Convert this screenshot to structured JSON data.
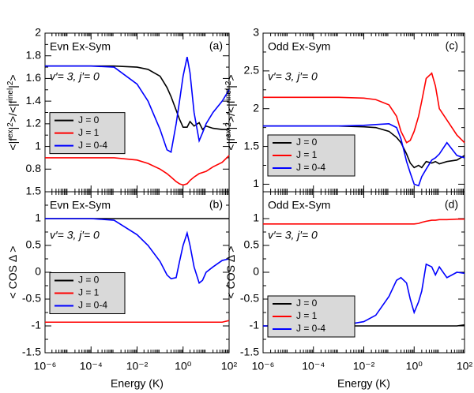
{
  "chart_data": [
    {
      "type": "line",
      "label": "(a)",
      "title": "Evn Ex-Sym",
      "annotation": "v′= 3, j′= 0",
      "ylabel": [
        "<|f",
        "ex",
        "|",
        "2",
        ">/<|f",
        "inel",
        "|",
        "2",
        ">"
      ],
      "xscale": "log",
      "xlim": [
        1e-06,
        100
      ],
      "xticks": [
        1e-06,
        0.0001,
        0.01,
        1,
        100
      ],
      "ylim": [
        0.6,
        2
      ],
      "yticks": [
        0.8,
        1,
        1.2,
        1.4,
        1.6,
        1.8,
        2
      ],
      "legend": "center left",
      "x": [
        1e-06,
        1e-05,
        0.0001,
        0.001,
        0.01,
        0.03,
        0.1,
        0.2,
        0.3,
        0.5,
        0.7,
        1,
        1.5,
        2,
        3,
        5,
        7,
        10,
        20,
        50,
        100
      ],
      "series": [
        {
          "name": "J = 0",
          "color": "#000000",
          "values": [
            1.71,
            1.71,
            1.71,
            1.71,
            1.7,
            1.68,
            1.62,
            1.52,
            1.44,
            1.32,
            1.24,
            1.17,
            1.17,
            1.22,
            1.18,
            1.21,
            1.15,
            1.18,
            1.16,
            1.15,
            1.15
          ]
        },
        {
          "name": "J = 1",
          "color": "#ff0000",
          "values": [
            0.9,
            0.9,
            0.9,
            0.9,
            0.88,
            0.85,
            0.8,
            0.76,
            0.73,
            0.69,
            0.67,
            0.66,
            0.67,
            0.7,
            0.73,
            0.76,
            0.77,
            0.78,
            0.82,
            0.86,
            0.92
          ]
        },
        {
          "name": "J = 0-4",
          "color": "#0000ff",
          "values": [
            1.71,
            1.71,
            1.71,
            1.7,
            1.55,
            1.4,
            1.15,
            0.97,
            0.95,
            1.2,
            1.4,
            1.62,
            1.79,
            1.65,
            1.3,
            1.05,
            1.12,
            1.2,
            1.3,
            1.4,
            1.5
          ]
        }
      ]
    },
    {
      "type": "line",
      "label": "(b)",
      "title": "Evn Ex-Sym",
      "annotation": "v′= 3, j′= 0",
      "ylabel": [
        "< COS Δ >"
      ],
      "xlabel": "Energy (K)",
      "xscale": "log",
      "xlim": [
        1e-06,
        100
      ],
      "xticks": [
        {
          "value": 1e-06,
          "label": "10⁻⁶"
        },
        {
          "value": 0.0001,
          "label": "10⁻⁴"
        },
        {
          "value": 0.01,
          "label": "10⁻²"
        },
        {
          "value": 1,
          "label": "10⁰"
        },
        {
          "value": 100,
          "label": "10²"
        }
      ],
      "ylim": [
        -1.5,
        1.5
      ],
      "yticks": [
        -1.5,
        -1,
        -0.5,
        0,
        0.5,
        1,
        1.5
      ],
      "legend": "center left",
      "x": [
        1e-06,
        1e-05,
        0.0001,
        0.001,
        0.01,
        0.03,
        0.1,
        0.2,
        0.3,
        0.5,
        0.7,
        1,
        1.5,
        2,
        3,
        5,
        7,
        10,
        20,
        50,
        100
      ],
      "series": [
        {
          "name": "J = 0",
          "color": "#000000",
          "values": [
            1,
            1,
            1,
            1,
            1,
            1,
            1,
            1,
            1,
            1,
            1,
            1,
            1,
            1,
            1,
            1,
            1,
            1,
            1,
            1,
            1
          ]
        },
        {
          "name": "J = 1",
          "color": "#ff0000",
          "values": [
            -0.93,
            -0.93,
            -0.93,
            -0.93,
            -0.93,
            -0.93,
            -0.93,
            -0.93,
            -0.93,
            -0.93,
            -0.93,
            -0.93,
            -0.93,
            -0.93,
            -0.93,
            -0.93,
            -0.93,
            -0.93,
            -0.93,
            -0.93,
            -0.9
          ]
        },
        {
          "name": "J = 0-4",
          "color": "#0000ff",
          "values": [
            1,
            1,
            1,
            0.97,
            0.7,
            0.5,
            0.2,
            -0.05,
            -0.12,
            -0.1,
            0.2,
            0.5,
            0.73,
            0.5,
            0.1,
            -0.2,
            -0.15,
            0,
            0.1,
            0.22,
            0.25
          ]
        }
      ]
    },
    {
      "type": "line",
      "label": "(c)",
      "title": "Odd Ex-Sym",
      "annotation": "v′= 3, j′= 0",
      "ylabel": [
        "<|f",
        "ex",
        "|",
        "2",
        ">/<|f",
        "inel",
        "|",
        "2",
        ">"
      ],
      "xscale": "log",
      "xlim": [
        1e-06,
        100
      ],
      "xticks": [
        1e-06,
        0.0001,
        0.01,
        1,
        100
      ],
      "ylim": [
        0.9,
        3
      ],
      "yticks": [
        1,
        1.5,
        2,
        2.5,
        3
      ],
      "legend": "lower left",
      "x": [
        1e-06,
        1e-05,
        0.0001,
        0.001,
        0.01,
        0.03,
        0.1,
        0.2,
        0.3,
        0.5,
        0.7,
        1,
        1.5,
        2,
        3,
        5,
        7,
        10,
        20,
        50,
        100
      ],
      "series": [
        {
          "name": "J = 0",
          "color": "#000000",
          "values": [
            1.77,
            1.77,
            1.77,
            1.77,
            1.76,
            1.75,
            1.7,
            1.62,
            1.55,
            1.4,
            1.28,
            1.22,
            1.25,
            1.22,
            1.3,
            1.28,
            1.3,
            1.27,
            1.3,
            1.32,
            1.38
          ]
        },
        {
          "name": "J = 1",
          "color": "#ff0000",
          "values": [
            2.15,
            2.15,
            2.15,
            2.15,
            2.14,
            2.12,
            2.05,
            1.9,
            1.7,
            1.55,
            1.58,
            1.7,
            1.9,
            2.1,
            2.4,
            2.47,
            2.3,
            2.0,
            1.85,
            1.65,
            1.55
          ]
        },
        {
          "name": "J = 0-4",
          "color": "#0000ff",
          "values": [
            1.77,
            1.77,
            1.77,
            1.77,
            1.78,
            1.79,
            1.8,
            1.75,
            1.6,
            1.3,
            1.15,
            1.0,
            0.98,
            1.1,
            1.2,
            1.32,
            1.35,
            1.4,
            1.55,
            1.38,
            1.35
          ]
        }
      ]
    },
    {
      "type": "line",
      "label": "(d)",
      "title": "Odd Ex-Sym",
      "annotation": "v′= 3, j′= 0",
      "ylabel": [
        "< COS Δ >"
      ],
      "xlabel": "Energy (K)",
      "xscale": "log",
      "xlim": [
        1e-06,
        100
      ],
      "xticks": [
        {
          "value": 1e-06,
          "label": "10⁻⁶"
        },
        {
          "value": 0.0001,
          "label": "10⁻⁴"
        },
        {
          "value": 0.01,
          "label": "10⁻²"
        },
        {
          "value": 1,
          "label": "10⁰"
        },
        {
          "value": 100,
          "label": "10²"
        }
      ],
      "ylim": [
        -1.5,
        1.5
      ],
      "yticks": [
        -1.5,
        -1,
        -0.5,
        0,
        0.5,
        1
      ],
      "legend": "lower left",
      "x": [
        1e-06,
        1e-05,
        0.0001,
        0.001,
        0.01,
        0.03,
        0.1,
        0.2,
        0.3,
        0.5,
        0.7,
        1,
        1.5,
        2,
        3,
        5,
        7,
        10,
        20,
        50,
        100
      ],
      "series": [
        {
          "name": "J = 0",
          "color": "#000000",
          "values": [
            -1,
            -1,
            -1,
            -1,
            -1,
            -1,
            -1,
            -1,
            -1,
            -1,
            -1,
            -1,
            -1,
            -1,
            -1,
            -1,
            -1,
            -1,
            -1,
            -1,
            -0.98
          ]
        },
        {
          "name": "J = 1",
          "color": "#ff0000",
          "values": [
            0.9,
            0.9,
            0.9,
            0.9,
            0.9,
            0.9,
            0.9,
            0.9,
            0.9,
            0.9,
            0.9,
            0.9,
            0.91,
            0.93,
            0.95,
            0.97,
            0.97,
            0.98,
            0.98,
            0.99,
            0.99
          ]
        },
        {
          "name": "J = 0-4",
          "color": "#0000ff",
          "values": [
            -1,
            -1,
            -1,
            -1,
            -0.92,
            -0.8,
            -0.45,
            -0.15,
            -0.1,
            -0.2,
            -0.5,
            -0.75,
            -0.55,
            -0.35,
            0.15,
            0.1,
            -0.05,
            0.1,
            -0.1,
            0,
            -0.02
          ]
        }
      ]
    }
  ]
}
